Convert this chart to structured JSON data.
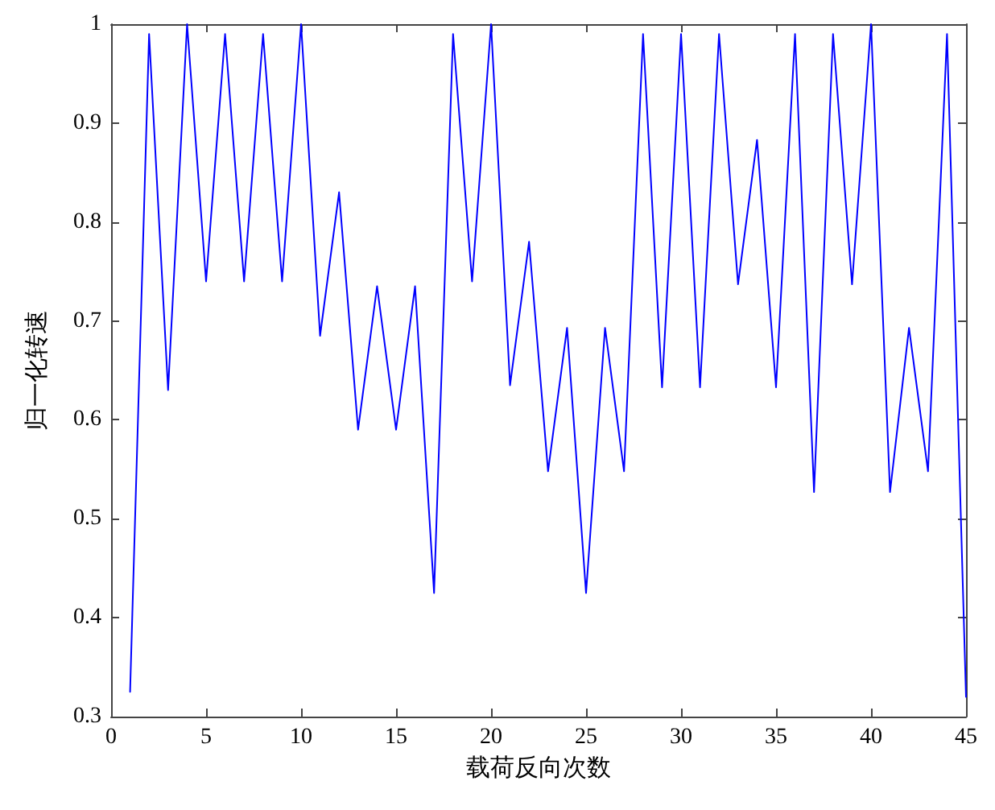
{
  "chart_data": {
    "type": "line",
    "xlabel": "载荷反向次数",
    "ylabel": "归一化转速",
    "x": [
      1,
      2,
      3,
      4,
      5,
      6,
      7,
      8,
      9,
      10,
      11,
      12,
      13,
      14,
      15,
      16,
      17,
      18,
      19,
      20,
      21,
      22,
      23,
      24,
      25,
      26,
      27,
      28,
      29,
      30,
      31,
      32,
      33,
      34,
      35,
      36,
      37,
      38,
      39,
      40,
      41,
      42,
      43,
      44,
      45
    ],
    "series": [
      {
        "color": "#0000ff",
        "values": [
          0.325,
          0.99,
          0.63,
          1.0,
          0.74,
          0.99,
          0.74,
          0.99,
          0.74,
          1.0,
          0.685,
          0.83,
          0.59,
          0.735,
          0.59,
          0.735,
          0.425,
          0.99,
          0.74,
          1.0,
          0.635,
          0.78,
          0.548,
          0.693,
          0.425,
          0.693,
          0.548,
          0.99,
          0.633,
          0.99,
          0.633,
          0.99,
          0.737,
          0.883,
          0.633,
          0.99,
          0.527,
          0.99,
          0.737,
          1.0,
          0.527,
          0.693,
          0.548,
          0.99,
          0.32
        ]
      }
    ],
    "xlim": [
      0,
      45
    ],
    "xticks": [
      0,
      5,
      10,
      15,
      20,
      25,
      30,
      35,
      40,
      45
    ],
    "ylim": [
      0.3,
      1
    ],
    "yticks": [
      0.3,
      0.4,
      0.5,
      0.6,
      0.7,
      0.8,
      0.9,
      1
    ],
    "grid": false,
    "marker": "none",
    "line_style": "solid"
  }
}
